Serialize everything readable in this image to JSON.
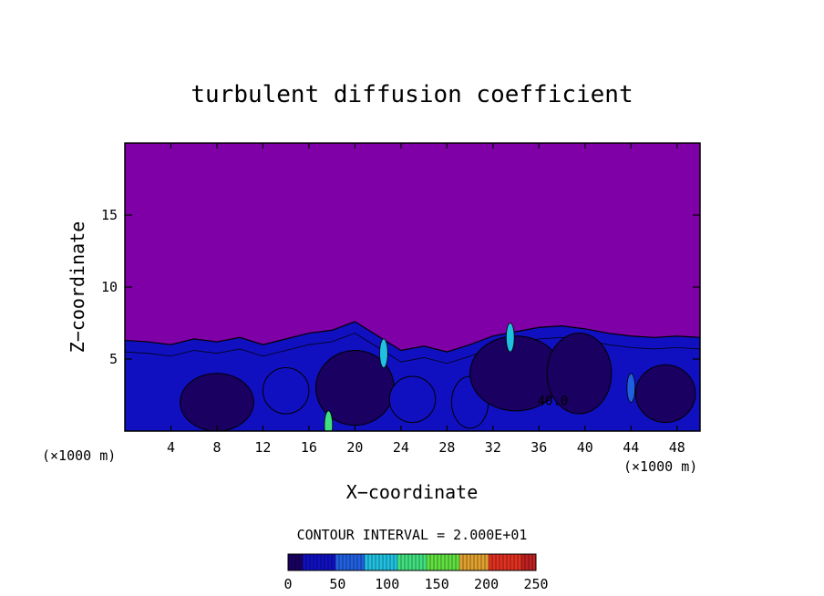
{
  "chart_data": {
    "type": "heatmap",
    "title": "turbulent diffusion coefficient",
    "xlabel": "X−coordinate",
    "ylabel": "Z−coordinate",
    "x_unit_left": "(×1000 m)",
    "x_unit_right": "(×1000 m)",
    "xlim": [
      0,
      50
    ],
    "ylim": [
      0,
      20
    ],
    "x_ticks": [
      4,
      8,
      12,
      16,
      20,
      24,
      28,
      32,
      36,
      40,
      44,
      48
    ],
    "y_ticks": [
      5,
      10,
      15
    ],
    "contour_interval_label": "CONTOUR INTERVAL = 2.000E+01",
    "contour_label": "40.0",
    "colorbar": {
      "min": 0,
      "max": 250,
      "ticks": [
        0,
        50,
        100,
        150,
        200,
        250
      ],
      "colors": [
        "#1a0060",
        "#1010c0",
        "#2060e0",
        "#20c0e0",
        "#40e080",
        "#60e040",
        "#e0a030",
        "#e03020",
        "#c02020"
      ]
    },
    "background_value": 0,
    "background_color": "#8000a8",
    "turbulent_layer_top_km": [
      [
        0,
        6.3
      ],
      [
        2,
        6.2
      ],
      [
        4,
        6.0
      ],
      [
        6,
        6.4
      ],
      [
        8,
        6.2
      ],
      [
        10,
        6.5
      ],
      [
        12,
        6.0
      ],
      [
        14,
        6.4
      ],
      [
        16,
        6.8
      ],
      [
        18,
        7.0
      ],
      [
        20,
        7.6
      ],
      [
        22,
        6.6
      ],
      [
        24,
        5.6
      ],
      [
        26,
        5.9
      ],
      [
        28,
        5.5
      ],
      [
        30,
        6.0
      ],
      [
        32,
        6.6
      ],
      [
        34,
        6.9
      ],
      [
        36,
        7.2
      ],
      [
        38,
        7.3
      ],
      [
        40,
        7.1
      ],
      [
        42,
        6.8
      ],
      [
        44,
        6.6
      ],
      [
        46,
        6.5
      ],
      [
        48,
        6.6
      ],
      [
        50,
        6.5
      ]
    ],
    "eddies": [
      {
        "x": 8,
        "z": 2.0,
        "rx": 3.2,
        "rz": 2.0,
        "value": 10
      },
      {
        "x": 14,
        "z": 2.8,
        "rx": 2.0,
        "rz": 1.6,
        "value": 30
      },
      {
        "x": 20,
        "z": 3.0,
        "rx": 3.4,
        "rz": 2.6,
        "value": 15
      },
      {
        "x": 25,
        "z": 2.2,
        "rx": 2.0,
        "rz": 1.6,
        "value": 20
      },
      {
        "x": 30,
        "z": 2.0,
        "rx": 1.6,
        "rz": 1.8,
        "value": 25
      },
      {
        "x": 34,
        "z": 4.0,
        "rx": 4.0,
        "rz": 2.6,
        "value": 10
      },
      {
        "x": 39.5,
        "z": 4.0,
        "rx": 2.8,
        "rz": 2.8,
        "value": 10
      },
      {
        "x": 47,
        "z": 2.6,
        "rx": 2.6,
        "rz": 2.0,
        "value": 10
      }
    ],
    "hot_spots": [
      {
        "x": 17.7,
        "z": 0.4,
        "value": 110
      },
      {
        "x": 22.5,
        "z": 5.4,
        "value": 80
      },
      {
        "x": 33.5,
        "z": 6.5,
        "value": 80
      },
      {
        "x": 44.0,
        "z": 3.0,
        "value": 70
      }
    ]
  }
}
